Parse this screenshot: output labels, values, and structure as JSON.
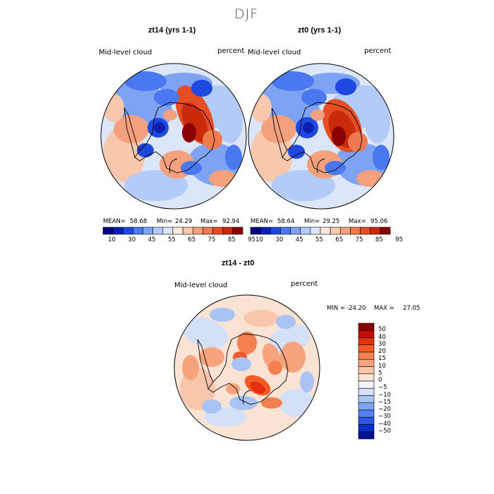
{
  "season": "DJF",
  "panels": [
    {
      "title": "zt14 (yrs 1-1)",
      "variable": "Mid-level cloud",
      "units": "percent",
      "stats": {
        "mean_label": "MEAN=",
        "mean": "58.68",
        "min_label": "Min=",
        "min": "24.29",
        "max_label": "Max=",
        "max": "92.94"
      }
    },
    {
      "title": "zt0 (yrs 1-1)",
      "variable": "Mid-level cloud",
      "units": "percent",
      "stats": {
        "mean_label": "MEAN=",
        "mean": "58.64",
        "min_label": "Min=",
        "min": "29.25",
        "max_label": "Max=",
        "max": "95.06"
      }
    }
  ],
  "colorbar_top": {
    "tick_labels": [
      "10",
      "30",
      "45",
      "55",
      "65",
      "75",
      "85",
      "95"
    ],
    "colors": [
      "#00007f",
      "#0a1fb0",
      "#1f48e0",
      "#4a78f0",
      "#7ea3f5",
      "#b3cbf8",
      "#dce6fa",
      "#fbe9dd",
      "#f8c8ad",
      "#f4a07c",
      "#f07a50",
      "#e54e25",
      "#c92a0c",
      "#8a0000"
    ]
  },
  "diff": {
    "title": "zt14 - zt0",
    "variable": "Mid-level cloud",
    "units": "percent",
    "min_label": "MIN =",
    "min": "-24.20",
    "max_label": "MAX =",
    "max": "27.05"
  },
  "colorbar_diff": {
    "levels": [
      "50",
      "40",
      "30",
      "20",
      "15",
      "10",
      "5",
      "0",
      "−5",
      "−10",
      "−15",
      "−20",
      "−30",
      "−40",
      "−50"
    ],
    "colors": [
      "#8a0000",
      "#c20e00",
      "#e4300f",
      "#f35a25",
      "#f57f4f",
      "#f7a37e",
      "#f9c6ab",
      "#fbe3d4",
      "#f2f4fb",
      "#d3e0f8",
      "#a9c3f5",
      "#7ea3f3",
      "#5580ef",
      "#2a55e5",
      "#0c2ec8",
      "#00108f"
    ]
  }
}
